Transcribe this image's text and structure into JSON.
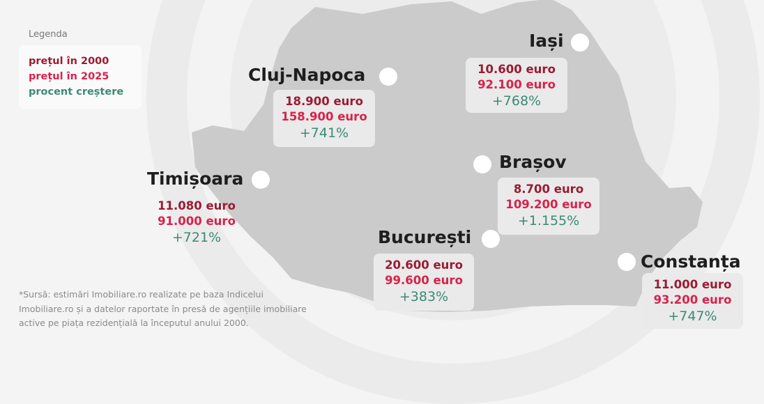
{
  "legend": {
    "title": "Legenda",
    "items": [
      {
        "label": "prețul în 2000",
        "color": "#9b1b32"
      },
      {
        "label": "prețul în 2025",
        "color": "#d8224a"
      },
      {
        "label": "procent creștere",
        "color": "#3b8a75"
      }
    ]
  },
  "cities": {
    "iasi": {
      "name": "Iași",
      "price_2000": "10.600 euro",
      "price_2025": "92.100 euro",
      "growth": "+768%"
    },
    "cluj": {
      "name": "Cluj-Napoca",
      "price_2000": "18.900 euro",
      "price_2025": "158.900 euro",
      "growth": "+741%"
    },
    "timisoara": {
      "name": "Timișoara",
      "price_2000": "11.080 euro",
      "price_2025": "91.000 euro",
      "growth": "+721%"
    },
    "brasov": {
      "name": "Brașov",
      "price_2000": "8.700 euro",
      "price_2025": "109.200 euro",
      "growth": "+1.155%"
    },
    "bucuresti": {
      "name": "București",
      "price_2000": "20.600 euro",
      "price_2025": "99.600 euro",
      "growth": "+383%"
    },
    "constanta": {
      "name": "Constanța",
      "price_2000": "11.000 euro",
      "price_2025": "93.200 euro",
      "growth": "+747%"
    }
  },
  "source_note": "*Sursă: estimări Imobiliare.ro realizate pe baza Indicelui Imobiliare.ro și a datelor raportate în presă de agențiile imobiliare active pe piața rezidențială la începutul anului 2000.",
  "colors": {
    "map_fill": "#cbcbcb",
    "background": "#f4f4f4"
  }
}
